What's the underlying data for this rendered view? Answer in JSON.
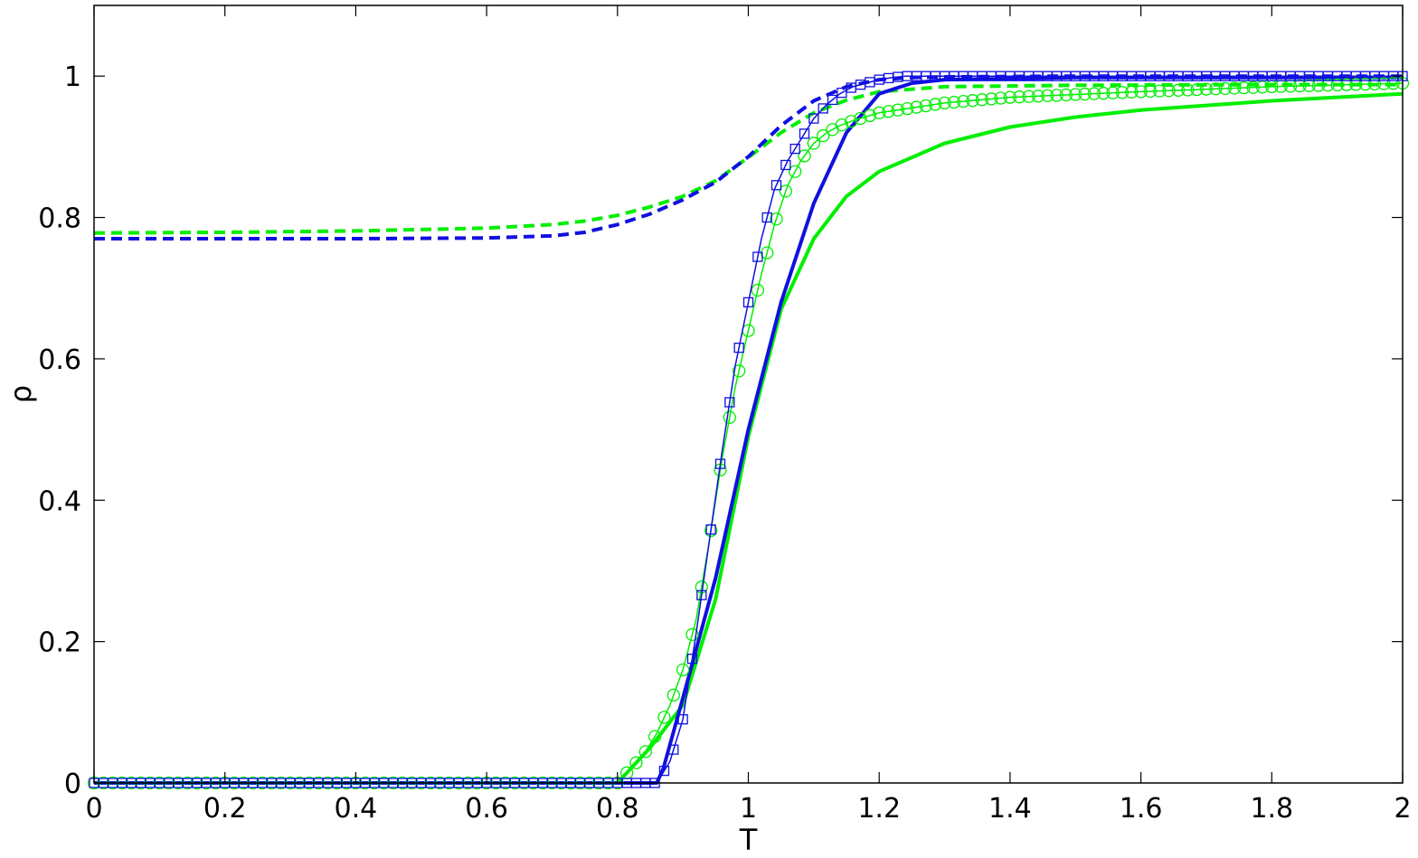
{
  "chart_data": {
    "type": "line",
    "title": "",
    "xlabel": "T",
    "ylabel": "ρ",
    "xlim": [
      0,
      2
    ],
    "ylim": [
      0,
      1.1
    ],
    "xticks": [
      0,
      0.2,
      0.4,
      0.6,
      0.8,
      1,
      1.2,
      1.4,
      1.6,
      1.8,
      2
    ],
    "xtick_labels": [
      "0",
      "0.2",
      "0.4",
      "0.6",
      "0.8",
      "1",
      "1.2",
      "1.4",
      "1.6",
      "1.8",
      "2"
    ],
    "yticks": [
      0,
      0.2,
      0.4,
      0.6,
      0.8,
      1
    ],
    "ytick_labels": [
      "0",
      "0.2",
      "0.4",
      "0.6",
      "0.8",
      "1"
    ],
    "grid": false,
    "legend": "none",
    "series": [
      {
        "style": "dashed",
        "color": "#00ee00",
        "marker": "none",
        "x": [
          0,
          0.2,
          0.4,
          0.6,
          0.7,
          0.75,
          0.8,
          0.85,
          0.9,
          0.95,
          1.0,
          1.05,
          1.1,
          1.15,
          1.2,
          1.3,
          1.5,
          1.8,
          2.0
        ],
        "y": [
          0.778,
          0.779,
          0.781,
          0.785,
          0.79,
          0.795,
          0.803,
          0.815,
          0.83,
          0.852,
          0.885,
          0.92,
          0.948,
          0.966,
          0.978,
          0.985,
          0.987,
          0.988,
          0.988
        ]
      },
      {
        "style": "dashed",
        "color": "#1010e0",
        "marker": "none",
        "x": [
          0,
          0.2,
          0.4,
          0.6,
          0.7,
          0.75,
          0.8,
          0.85,
          0.9,
          0.95,
          1.0,
          1.05,
          1.1,
          1.15,
          1.2,
          1.25,
          1.3,
          1.5,
          2.0
        ],
        "y": [
          0.77,
          0.77,
          0.77,
          0.771,
          0.774,
          0.779,
          0.79,
          0.805,
          0.825,
          0.85,
          0.886,
          0.93,
          0.965,
          0.985,
          0.995,
          0.998,
          0.999,
          1.0,
          1.0
        ]
      },
      {
        "style": "solid",
        "color": "#1010e0",
        "marker": "none",
        "x": [
          0,
          0.86,
          0.87,
          0.9,
          0.95,
          1.0,
          1.05,
          1.1,
          1.15,
          1.2,
          1.25,
          1.3,
          1.5,
          2.0
        ],
        "y": [
          0,
          0,
          0.02,
          0.12,
          0.29,
          0.5,
          0.68,
          0.82,
          0.92,
          0.975,
          0.99,
          0.995,
          0.998,
          0.998
        ]
      },
      {
        "style": "solid",
        "color": "#00ee00",
        "marker": "none",
        "x": [
          0,
          0.8,
          0.85,
          0.9,
          0.95,
          1.0,
          1.05,
          1.1,
          1.15,
          1.2,
          1.3,
          1.4,
          1.5,
          1.6,
          1.8,
          2.0
        ],
        "y": [
          0,
          0,
          0.05,
          0.11,
          0.26,
          0.49,
          0.67,
          0.77,
          0.83,
          0.865,
          0.905,
          0.928,
          0.942,
          0.952,
          0.965,
          0.975
        ]
      },
      {
        "style": "thin-solid",
        "color": "#1010e0",
        "marker": "square",
        "x": [
          0,
          0.86,
          0.88,
          0.9,
          0.92,
          0.94,
          0.96,
          0.98,
          1.0,
          1.02,
          1.04,
          1.06,
          1.08,
          1.1,
          1.12,
          1.14,
          1.16,
          1.18,
          1.2,
          1.22,
          1.24,
          1.26,
          1.3,
          1.4,
          1.6,
          2.0
        ],
        "y": [
          0,
          0,
          0.03,
          0.09,
          0.21,
          0.34,
          0.47,
          0.59,
          0.68,
          0.77,
          0.84,
          0.88,
          0.91,
          0.94,
          0.96,
          0.975,
          0.985,
          0.99,
          0.995,
          0.998,
          1.0,
          1.0,
          1.0,
          1.0,
          1.0,
          1.0
        ]
      },
      {
        "style": "thin-solid",
        "color": "#00ee00",
        "marker": "circle",
        "x": [
          0,
          0.8,
          0.82,
          0.84,
          0.86,
          0.88,
          0.9,
          0.92,
          0.94,
          0.96,
          0.98,
          1.0,
          1.02,
          1.04,
          1.06,
          1.08,
          1.1,
          1.12,
          1.14,
          1.16,
          1.2,
          1.3,
          1.4,
          1.6,
          1.8,
          2.0
        ],
        "y": [
          0,
          0,
          0.02,
          0.04,
          0.07,
          0.11,
          0.16,
          0.23,
          0.34,
          0.46,
          0.56,
          0.64,
          0.72,
          0.79,
          0.845,
          0.88,
          0.905,
          0.92,
          0.93,
          0.937,
          0.948,
          0.962,
          0.97,
          0.978,
          0.985,
          0.99
        ]
      }
    ]
  }
}
